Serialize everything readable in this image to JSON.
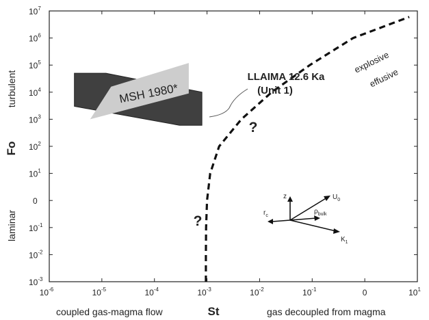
{
  "chart_data": {
    "type": "line",
    "xlabel": "St",
    "ylabel": "Fo",
    "x_scale": "log",
    "y_scale": "log",
    "xlim": [
      1e-06,
      10
    ],
    "ylim": [
      0.001,
      10000000
    ],
    "x_ticks": [
      {
        "value": 1e-06,
        "base": "10",
        "exp": "-6"
      },
      {
        "value": 1e-05,
        "base": "10",
        "exp": "-5"
      },
      {
        "value": 0.0001,
        "base": "10",
        "exp": "-4"
      },
      {
        "value": 0.001,
        "base": "10",
        "exp": "-3"
      },
      {
        "value": 0.01,
        "base": "10",
        "exp": "-2"
      },
      {
        "value": 0.1,
        "base": "10",
        "exp": "-1"
      },
      {
        "value": 1,
        "base": "0",
        "exp": ""
      },
      {
        "value": 10,
        "base": "10",
        "exp": "1"
      }
    ],
    "y_ticks": [
      {
        "value": 0.001,
        "base": "10",
        "exp": "-3"
      },
      {
        "value": 0.01,
        "base": "10",
        "exp": "-2"
      },
      {
        "value": 0.1,
        "base": "10",
        "exp": "-1"
      },
      {
        "value": 1,
        "base": "0",
        "exp": ""
      },
      {
        "value": 10,
        "base": "10",
        "exp": "1"
      },
      {
        "value": 100,
        "base": "10",
        "exp": "2"
      },
      {
        "value": 1000,
        "base": "10",
        "exp": "3"
      },
      {
        "value": 10000,
        "base": "10",
        "exp": "4"
      },
      {
        "value": 100000,
        "base": "10",
        "exp": "5"
      },
      {
        "value": 1000000,
        "base": "10",
        "exp": "6"
      },
      {
        "value": 10000000,
        "base": "10",
        "exp": "7"
      }
    ],
    "x_side_labels": {
      "left": "coupled gas-magma flow",
      "right": "gas decoupled from magma"
    },
    "y_side_labels": {
      "top": "turbulent",
      "bottom": "laminar"
    },
    "boundary_curve": {
      "style": "dashed",
      "color": "#111111",
      "points": [
        [
          0.00095,
          0.001
        ],
        [
          0.00095,
          0.01
        ],
        [
          0.00096,
          0.1
        ],
        [
          0.001,
          1
        ],
        [
          0.00115,
          10
        ],
        [
          0.0017,
          100
        ],
        [
          0.0045,
          1000
        ],
        [
          0.017,
          10000
        ],
        [
          0.09,
          100000
        ],
        [
          0.6,
          1000000
        ],
        [
          7,
          6000000
        ]
      ],
      "label_above": "explosive",
      "label_below": "effusive"
    },
    "regions": [
      {
        "name": "LLAIMA 12.6 Ka (Unit 1)",
        "label_lines": [
          "LLAIMA 12.6 Ka",
          "(Unit 1)"
        ],
        "color": "#404040",
        "polygon": [
          [
            3e-06,
            50000
          ],
          [
            1.2e-05,
            50000
          ],
          [
            0.0008,
            10000
          ],
          [
            0.0008,
            600
          ],
          [
            0.0003,
            600
          ],
          [
            3e-06,
            3000
          ]
        ]
      },
      {
        "name": "MSH 1980*",
        "label_lines": [
          "MSH 1980*"
        ],
        "color": "#cdcdcd",
        "polygon": [
          [
            1.5e-05,
            16000
          ],
          [
            0.00045,
            120000
          ],
          [
            0.00045,
            9000
          ],
          [
            6e-06,
            1000
          ]
        ]
      }
    ],
    "question_marks": [
      {
        "text": "?",
        "x": 0.0045,
        "y": 500
      },
      {
        "text": "?",
        "x": 0.0006,
        "y": 0.2
      }
    ],
    "vector_labels": {
      "z": "z",
      "u0": "U",
      "u0_sub": "0",
      "rc": "r",
      "rc_sub": "c",
      "rho": "ρ",
      "rho_sub": "bulk",
      "k1": "K",
      "k1_sub": "1"
    }
  }
}
